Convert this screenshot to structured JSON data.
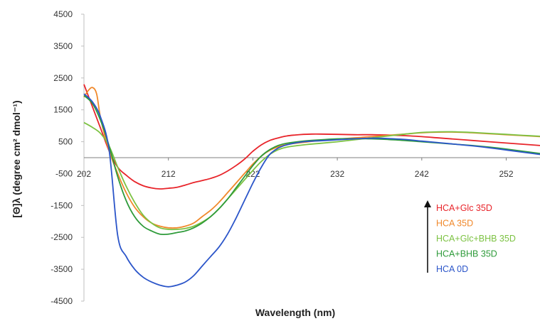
{
  "chart_data": {
    "type": "line",
    "title": "",
    "xlabel": "Wavelength (nm)",
    "ylabel": "[Θ]λ (degree cm² dmol⁻¹)",
    "xlim": [
      202,
      256
    ],
    "ylim": [
      -4500,
      4500
    ],
    "x_ticks": [
      202,
      212,
      222,
      232,
      242,
      252
    ],
    "y_ticks": [
      4500,
      3500,
      2500,
      1500,
      500,
      -500,
      -1500,
      -2500,
      -3500,
      -4500
    ],
    "grid": false,
    "legend_position": "right",
    "series": [
      {
        "name": "HCA+Glc 35D",
        "color": "#e8242a",
        "x": [
          202,
          203,
          204,
          205,
          206,
          207,
          208,
          209,
          210,
          211,
          212,
          213,
          214,
          215,
          216,
          217,
          218,
          219,
          220,
          221,
          222,
          223,
          224,
          225,
          226,
          227,
          228,
          229,
          230,
          232,
          234,
          236,
          238,
          240,
          242,
          244,
          246,
          248,
          250,
          252,
          254,
          256
        ],
        "y": [
          2300,
          1600,
          900,
          200,
          -300,
          -550,
          -750,
          -880,
          -950,
          -980,
          -960,
          -930,
          -860,
          -780,
          -720,
          -650,
          -560,
          -420,
          -250,
          -50,
          200,
          400,
          540,
          620,
          680,
          710,
          730,
          740,
          740,
          730,
          720,
          720,
          710,
          690,
          660,
          620,
          580,
          540,
          500,
          460,
          420,
          380
        ]
      },
      {
        "name": "HCA 35D",
        "color": "#f0882a",
        "x": [
          202,
          202.5,
          203,
          203.5,
          204,
          205,
          206,
          207,
          208,
          209,
          210,
          211,
          212,
          213,
          214,
          215,
          216,
          217,
          218,
          219,
          220,
          221,
          222,
          223,
          224,
          225,
          226,
          228,
          230,
          232,
          234,
          236,
          238,
          240,
          242,
          244,
          246,
          248,
          250,
          252,
          254,
          256
        ],
        "y": [
          1900,
          2100,
          2200,
          2000,
          1200,
          200,
          -500,
          -1100,
          -1550,
          -1850,
          -2050,
          -2150,
          -2200,
          -2200,
          -2150,
          -2050,
          -1850,
          -1650,
          -1400,
          -1100,
          -800,
          -500,
          -200,
          50,
          230,
          340,
          410,
          480,
          540,
          580,
          620,
          660,
          700,
          740,
          780,
          800,
          800,
          780,
          750,
          720,
          690,
          660
        ]
      },
      {
        "name": "HCA+Glc+BHB 35D",
        "color": "#7cc242",
        "x": [
          202,
          203,
          204,
          205,
          206,
          207,
          208,
          209,
          210,
          211,
          212,
          213,
          214,
          215,
          216,
          217,
          218,
          219,
          220,
          221,
          222,
          223,
          224,
          225,
          226,
          228,
          230,
          232,
          234,
          236,
          238,
          240,
          242,
          244,
          246,
          248,
          250,
          252,
          254,
          256
        ],
        "y": [
          1100,
          950,
          750,
          350,
          -300,
          -900,
          -1400,
          -1800,
          -2050,
          -2200,
          -2250,
          -2250,
          -2220,
          -2150,
          -2020,
          -1850,
          -1600,
          -1300,
          -1000,
          -700,
          -400,
          -120,
          100,
          250,
          330,
          400,
          450,
          500,
          560,
          620,
          680,
          740,
          790,
          810,
          810,
          790,
          760,
          730,
          700,
          670
        ]
      },
      {
        "name": "HCA+BHB 35D",
        "color": "#2e9b3a",
        "x": [
          202,
          203,
          204,
          205,
          206,
          207,
          208,
          209,
          210,
          211,
          212,
          213,
          214,
          215,
          216,
          217,
          218,
          219,
          220,
          221,
          222,
          223,
          224,
          225,
          226,
          228,
          230,
          232,
          234,
          236,
          238,
          240,
          242,
          244,
          246,
          248,
          250,
          252,
          254,
          256
        ],
        "y": [
          1950,
          1700,
          1150,
          350,
          -600,
          -1350,
          -1850,
          -2150,
          -2300,
          -2400,
          -2400,
          -2350,
          -2300,
          -2200,
          -2050,
          -1850,
          -1600,
          -1300,
          -950,
          -600,
          -250,
          50,
          250,
          380,
          450,
          520,
          560,
          590,
          600,
          590,
          570,
          540,
          500,
          460,
          420,
          380,
          330,
          270,
          200,
          130
        ]
      },
      {
        "name": "HCA 0D",
        "color": "#2b55c9",
        "x": [
          202,
          203,
          204,
          205,
          206,
          207,
          208,
          209,
          210,
          211,
          212,
          213,
          214,
          215,
          216,
          217,
          218,
          219,
          220,
          221,
          222,
          223,
          224,
          225,
          226,
          228,
          230,
          232,
          234,
          236,
          238,
          240,
          242,
          244,
          246,
          248,
          250,
          252,
          254,
          256
        ],
        "y": [
          2000,
          1750,
          1250,
          200,
          -2450,
          -3100,
          -3500,
          -3750,
          -3900,
          -4000,
          -4050,
          -4000,
          -3900,
          -3700,
          -3400,
          -3100,
          -2800,
          -2400,
          -1900,
          -1350,
          -800,
          -300,
          100,
          300,
          400,
          500,
          530,
          560,
          590,
          610,
          600,
          570,
          520,
          470,
          420,
          370,
          310,
          240,
          170,
          100
        ]
      }
    ]
  }
}
